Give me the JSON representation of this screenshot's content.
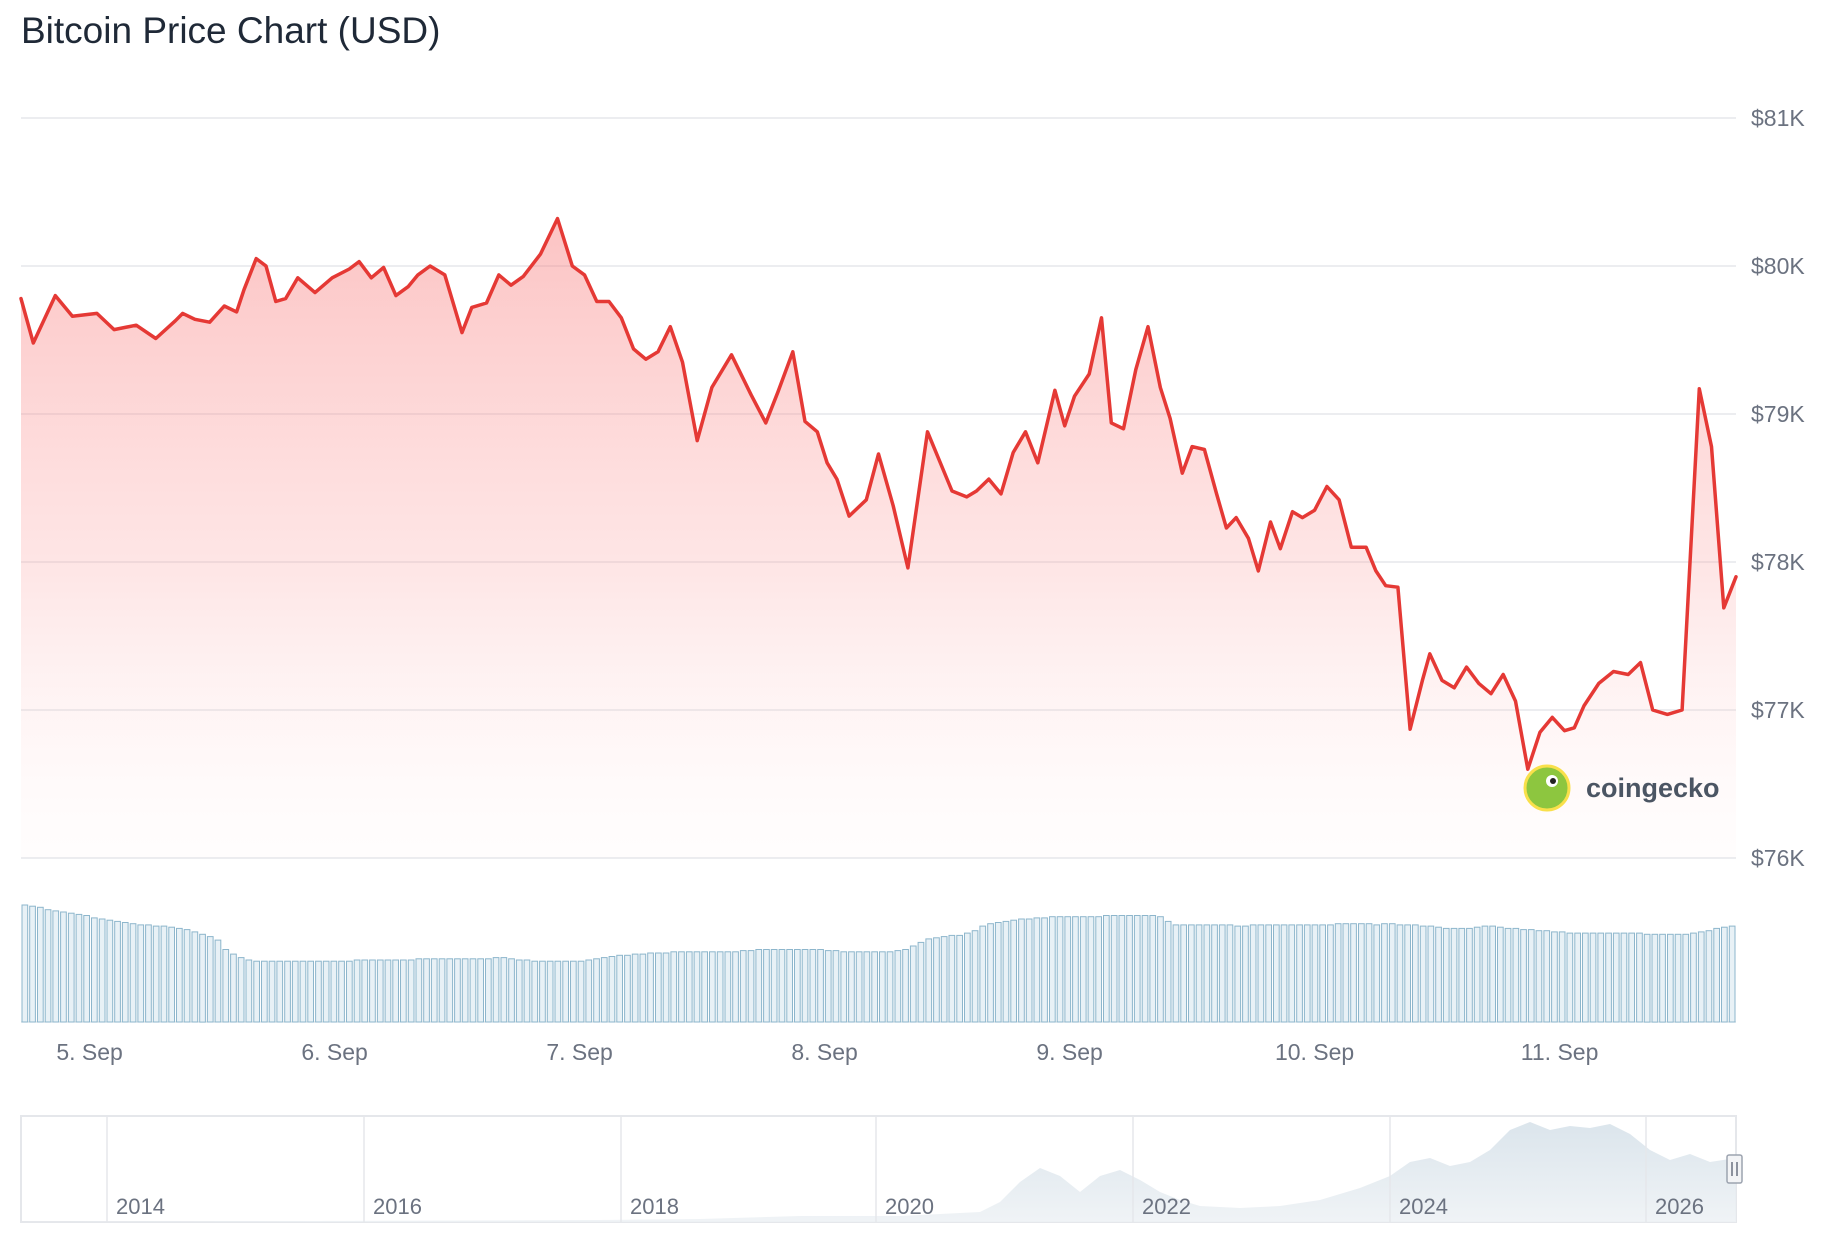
{
  "chart_data": {
    "type": "line",
    "title": "Bitcoin Price Chart (USD)",
    "xlabel": "",
    "ylabel": "",
    "ylim": [
      76000,
      81000
    ],
    "xlim": [
      0.0,
      7.0
    ],
    "x_ticks": [
      {
        "label": "5. Sep",
        "x": 0.28
      },
      {
        "label": "6. Sep",
        "x": 1.28
      },
      {
        "label": "7. Sep",
        "x": 2.28
      },
      {
        "label": "8. Sep",
        "x": 3.28
      },
      {
        "label": "9. Sep",
        "x": 4.28
      },
      {
        "label": "10. Sep",
        "x": 5.28
      },
      {
        "label": "11. Sep",
        "x": 6.28
      }
    ],
    "y_ticks": [
      {
        "label": "$76K",
        "value": 76000
      },
      {
        "label": "$77K",
        "value": 77000
      },
      {
        "label": "$78K",
        "value": 78000
      },
      {
        "label": "$79K",
        "value": 79000
      },
      {
        "label": "$80K",
        "value": 80000
      },
      {
        "label": "$81K",
        "value": 81000
      }
    ],
    "grid": true,
    "series": [
      {
        "color": "#e53935",
        "x": [
          0.0,
          0.05,
          0.14,
          0.21,
          0.31,
          0.38,
          0.47,
          0.55,
          0.63,
          0.66,
          0.71,
          0.77,
          0.83,
          0.88,
          0.91,
          0.96,
          1.0,
          1.04,
          1.08,
          1.13,
          1.2,
          1.27,
          1.34,
          1.38,
          1.43,
          1.48,
          1.53,
          1.58,
          1.62,
          1.67,
          1.73,
          1.8,
          1.84,
          1.9,
          1.95,
          2.0,
          2.05,
          2.12,
          2.19,
          2.25,
          2.3,
          2.35,
          2.4,
          2.45,
          2.5,
          2.55,
          2.6,
          2.65,
          2.7,
          2.76,
          2.82,
          2.9,
          2.98,
          3.04,
          3.09,
          3.15,
          3.2,
          3.25,
          3.29,
          3.33,
          3.38,
          3.45,
          3.5,
          3.56,
          3.62,
          3.7,
          3.8,
          3.86,
          3.9,
          3.95,
          4.0,
          4.05,
          4.1,
          4.15,
          4.22,
          4.26,
          4.3,
          4.36,
          4.41,
          4.45,
          4.5,
          4.55,
          4.6,
          4.65,
          4.69,
          4.74,
          4.78,
          4.83,
          4.88,
          4.92,
          4.96,
          5.01,
          5.05,
          5.1,
          5.14,
          5.19,
          5.23,
          5.28,
          5.33,
          5.38,
          5.43,
          5.49,
          5.53,
          5.57,
          5.62,
          5.67,
          5.72,
          5.75,
          5.8,
          5.85,
          5.9,
          5.95,
          6.0,
          6.05,
          6.1,
          6.15,
          6.2,
          6.25,
          6.3,
          6.34,
          6.38,
          6.44,
          6.5,
          6.56,
          6.61,
          6.66,
          6.72,
          6.78,
          6.85,
          6.9,
          6.95,
          7.0
        ],
        "y": [
          79780,
          79480,
          79800,
          79660,
          79680,
          79570,
          79600,
          79510,
          79630,
          79680,
          79640,
          79620,
          79730,
          79690,
          79840,
          80050,
          80000,
          79760,
          79780,
          79920,
          79820,
          79920,
          79980,
          80030,
          79920,
          79990,
          79800,
          79860,
          79940,
          80000,
          79940,
          79550,
          79720,
          79750,
          79940,
          79870,
          79930,
          80080,
          80320,
          80000,
          79940,
          79760,
          79760,
          79650,
          79440,
          79370,
          79420,
          79590,
          79350,
          78820,
          79180,
          79400,
          79130,
          78940,
          79150,
          79420,
          78950,
          78880,
          78670,
          78560,
          78310,
          78420,
          78730,
          78380,
          77960,
          78880,
          78480,
          78440,
          78480,
          78560,
          78460,
          78740,
          78880,
          78670,
          79160,
          78920,
          79120,
          79270,
          79650,
          78940,
          78900,
          79300,
          79590,
          79180,
          78970,
          78600,
          78780,
          78760,
          78460,
          78230,
          78300,
          78160,
          77940,
          78270,
          78090,
          78340,
          78300,
          78350,
          78510,
          78420,
          78100,
          78100,
          77940,
          77840,
          77830,
          76870,
          77200,
          77380,
          77200,
          77150,
          77290,
          77180,
          77110,
          77240,
          77060,
          76600,
          76850,
          76950,
          76860,
          76880,
          77030,
          77180,
          77260,
          77240,
          77320,
          77000,
          76970,
          77000,
          79170,
          78780,
          77690,
          77900
        ]
      }
    ],
    "volume_bars": {
      "color": "#8db6cc",
      "values": [
        100,
        99,
        98,
        96,
        95,
        94,
        93,
        92,
        91,
        89,
        88,
        87,
        86,
        85,
        84,
        83,
        83,
        82,
        82,
        81,
        80,
        79,
        77,
        75,
        73,
        70,
        62,
        58,
        55,
        53,
        52,
        52,
        52,
        52,
        52,
        52,
        52,
        52,
        52,
        52,
        52,
        52,
        52,
        53,
        53,
        53,
        53,
        53,
        53,
        53,
        53,
        54,
        54,
        54,
        54,
        54,
        54,
        54,
        54,
        54,
        54,
        55,
        55,
        54,
        53,
        53,
        52,
        52,
        52,
        52,
        52,
        52,
        52,
        53,
        54,
        55,
        56,
        57,
        57,
        58,
        58,
        59,
        59,
        59,
        60,
        60,
        60,
        60,
        60,
        60,
        60,
        60,
        60,
        61,
        61,
        62,
        62,
        62,
        62,
        62,
        62,
        62,
        62,
        62,
        61,
        61,
        60,
        60,
        60,
        60,
        60,
        60,
        60,
        61,
        62,
        65,
        68,
        71,
        72,
        73,
        74,
        74,
        76,
        78,
        82,
        84,
        85,
        86,
        87,
        88,
        88,
        89,
        89,
        90,
        90,
        90,
        90,
        90,
        90,
        90,
        91,
        91,
        91,
        91,
        91,
        91,
        91,
        90,
        86,
        83,
        83,
        83,
        83,
        83,
        83,
        83,
        83,
        82,
        82,
        83,
        83,
        83,
        83,
        83,
        83,
        83,
        83,
        83,
        83,
        83,
        84,
        84,
        84,
        84,
        84,
        83,
        84,
        84,
        83,
        83,
        83,
        82,
        82,
        81,
        80,
        80,
        80,
        80,
        81,
        82,
        82,
        81,
        80,
        80,
        79,
        79,
        78,
        78,
        77,
        77,
        76,
        76,
        76,
        76,
        76,
        76,
        76,
        76,
        76,
        76,
        75,
        75,
        75,
        75,
        75,
        75,
        76,
        77,
        78,
        80,
        81,
        82
      ]
    },
    "navigator": {
      "x_ticks": [
        "2014",
        "2016",
        "2018",
        "2020",
        "2022",
        "2024",
        "2026"
      ]
    },
    "watermark": "coingecko"
  }
}
